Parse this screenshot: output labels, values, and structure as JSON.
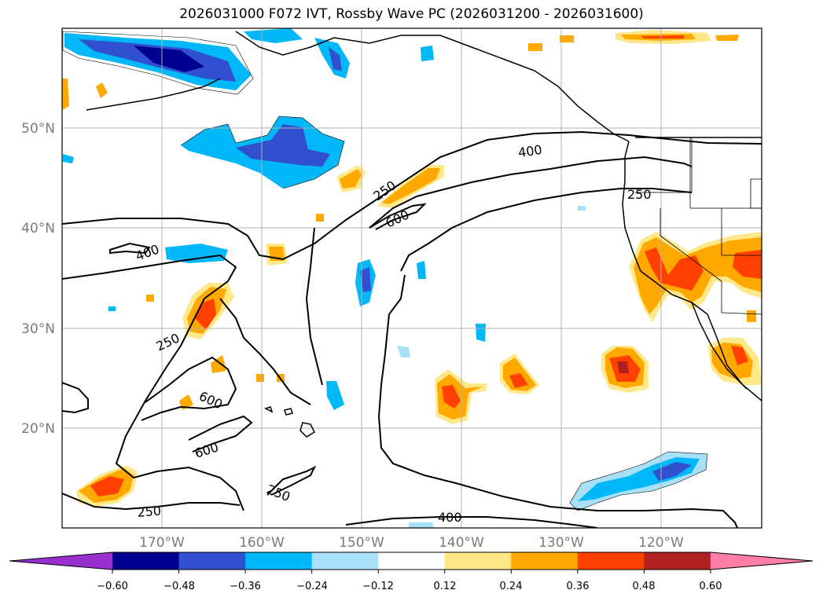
{
  "title": "2026031000 F072 IVT, Rossby Wave PC (2026031200 - 2026031600)",
  "map": {
    "lat_labels": [
      "50°N",
      "40°N",
      "30°N",
      "20°N"
    ],
    "lon_labels": [
      "170°W",
      "160°W",
      "150°W",
      "140°W",
      "130°W",
      "120°W"
    ],
    "contour_labels": [
      "400",
      "400",
      "250",
      "600",
      "250",
      "600",
      "600",
      "250",
      "250",
      "400",
      "250"
    ]
  },
  "colorbar": {
    "ticks": [
      "−0.60",
      "−0.48",
      "−0.36",
      "−0.24",
      "−0.12",
      "0.12",
      "0.24",
      "0.36",
      "0.48",
      "0.60"
    ],
    "colors": [
      "#9a2fd0",
      "#000090",
      "#3050d0",
      "#00b8f8",
      "#a8e0f8",
      "#ffffff",
      "#ffe88a",
      "#ffa800",
      "#ff4000",
      "#b02020",
      "#ff7fa8"
    ]
  }
}
